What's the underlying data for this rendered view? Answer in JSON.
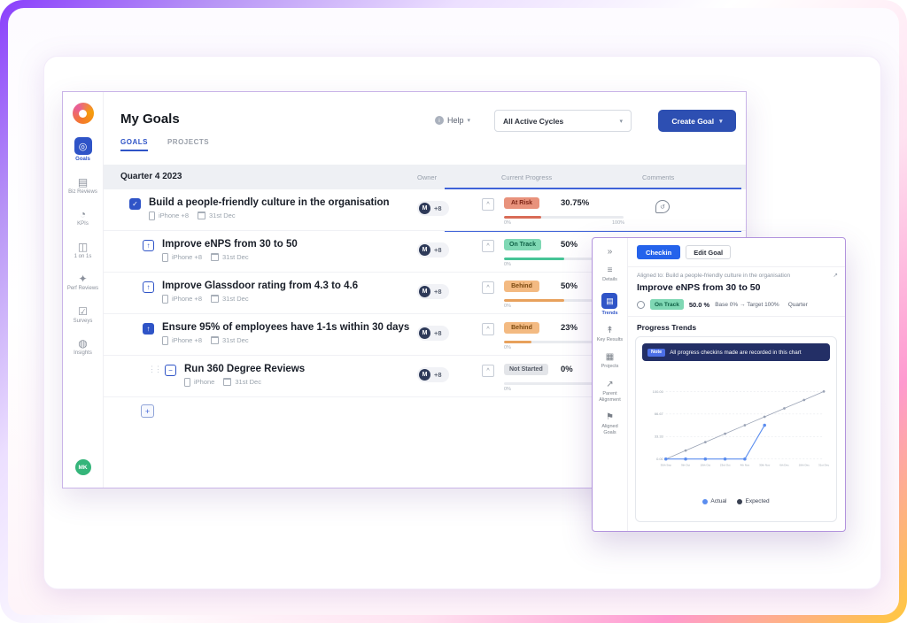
{
  "colors": {
    "primary_blue": "#2d4fb2",
    "accent_blue": "#2f54c7",
    "at_risk_bg": "#e8927c",
    "on_track_bg": "#7fd8b4",
    "behind_bg": "#f3ba82",
    "not_started_bg": "#e3e5e9",
    "banner_navy": "#232f66"
  },
  "app": {
    "sidebar": {
      "items": [
        {
          "label": "Goals",
          "icon": "target-icon",
          "active": true
        },
        {
          "label": "Biz Reviews",
          "icon": "biz-reviews-icon",
          "active": false
        },
        {
          "label": "KPIs",
          "icon": "kpi-gauge-icon",
          "active": false
        },
        {
          "label": "1 on 1s",
          "icon": "one-on-one-icon",
          "active": false
        },
        {
          "label": "Perf Reviews",
          "icon": "perf-review-icon",
          "active": false
        },
        {
          "label": "Surveys",
          "icon": "survey-icon",
          "active": false
        },
        {
          "label": "Insights",
          "icon": "insights-icon",
          "active": false
        }
      ],
      "avatar_initials": "MK"
    },
    "header": {
      "title": "My Goals",
      "tabs": [
        {
          "label": "GOALS",
          "active": true
        },
        {
          "label": "PROJECTS",
          "active": false
        }
      ],
      "help_label": "Help",
      "cycle_filter_value": "All Active Cycles",
      "create_goal_label": "Create Goal"
    },
    "table": {
      "group_title": "Quarter 4 2023",
      "columns": [
        "Owner",
        "Current Progress",
        "Comments"
      ],
      "scale_min": "0%",
      "scale_max": "100%",
      "rows": [
        {
          "title": "Build a people-friendly culture in the organisation",
          "device": "iPhone +8",
          "due": "31st Dec",
          "owner_initial": "M",
          "owner_more": "+8",
          "status": "At Risk",
          "progress_label": "30.75%",
          "progress_value": 30.75
        },
        {
          "title": "Improve eNPS from 30 to 50",
          "device": "iPhone +8",
          "due": "31st Dec",
          "owner_initial": "M",
          "owner_more": "+8",
          "status": "On Track",
          "progress_label": "50%",
          "progress_value": 50
        },
        {
          "title": "Improve Glassdoor rating from 4.3 to 4.6",
          "device": "iPhone +8",
          "due": "31st Dec",
          "owner_initial": "M",
          "owner_more": "+8",
          "status": "Behind",
          "progress_label": "50%",
          "progress_value": 50
        },
        {
          "title": "Ensure 95% of employees have 1-1s within 30 days",
          "device": "iPhone +8",
          "due": "31st Dec",
          "owner_initial": "M",
          "owner_more": "+8",
          "status": "Behind",
          "progress_label": "23%",
          "progress_value": 23
        },
        {
          "title": "Run 360 Degree Reviews",
          "device": "iPhone",
          "due": "31st Dec",
          "owner_initial": "M",
          "owner_more": "+8",
          "status": "Not Started",
          "progress_label": "0%",
          "progress_value": 0
        }
      ]
    }
  },
  "panel": {
    "rail": [
      {
        "label": "Details",
        "active": false
      },
      {
        "label": "Trends",
        "active": true
      },
      {
        "label": "Key Results",
        "active": false
      },
      {
        "label": "Projects",
        "active": false
      },
      {
        "label": "Parent Alignment",
        "active": false
      },
      {
        "label": "Aligned Goals",
        "active": false
      }
    ],
    "checkin_label": "Checkin",
    "edit_goal_label": "Edit Goal",
    "aligned_to": "Aligned to: Build a people-friendly culture in the organisation",
    "title": "Improve eNPS from 30 to 50",
    "status": "On Track",
    "progress": "50.0 %",
    "base_target": "Base 0% → Target 100%",
    "cycle": "Quarter",
    "section_title": "Progress Trends",
    "note_badge": "Note",
    "note_text": "All progress checkins made are recorded in this chart"
  },
  "chart_data": {
    "type": "line",
    "title": "Progress Trends",
    "x": [
      "30th Sep",
      "9th Oct",
      "18th Oct",
      "23rd Oct",
      "4th Nov",
      "30th Nov",
      "6th Dec",
      "18th Dec",
      "31st Dec"
    ],
    "series": [
      {
        "name": "Actual",
        "color": "#5b8def",
        "values": [
          0,
          0,
          0,
          0,
          0,
          50,
          null,
          null,
          null
        ]
      },
      {
        "name": "Expected",
        "color": "#9aa3b5",
        "values": [
          0,
          12.5,
          25,
          37.5,
          50,
          62.5,
          75,
          87.5,
          100
        ]
      }
    ],
    "ylim": [
      0,
      100
    ],
    "yticks": [
      100,
      66.67,
      33.33,
      0
    ],
    "ytick_labels": [
      "100.00",
      "66.67",
      "33.33",
      "0.00"
    ],
    "grid": true,
    "legend_position": "bottom"
  }
}
